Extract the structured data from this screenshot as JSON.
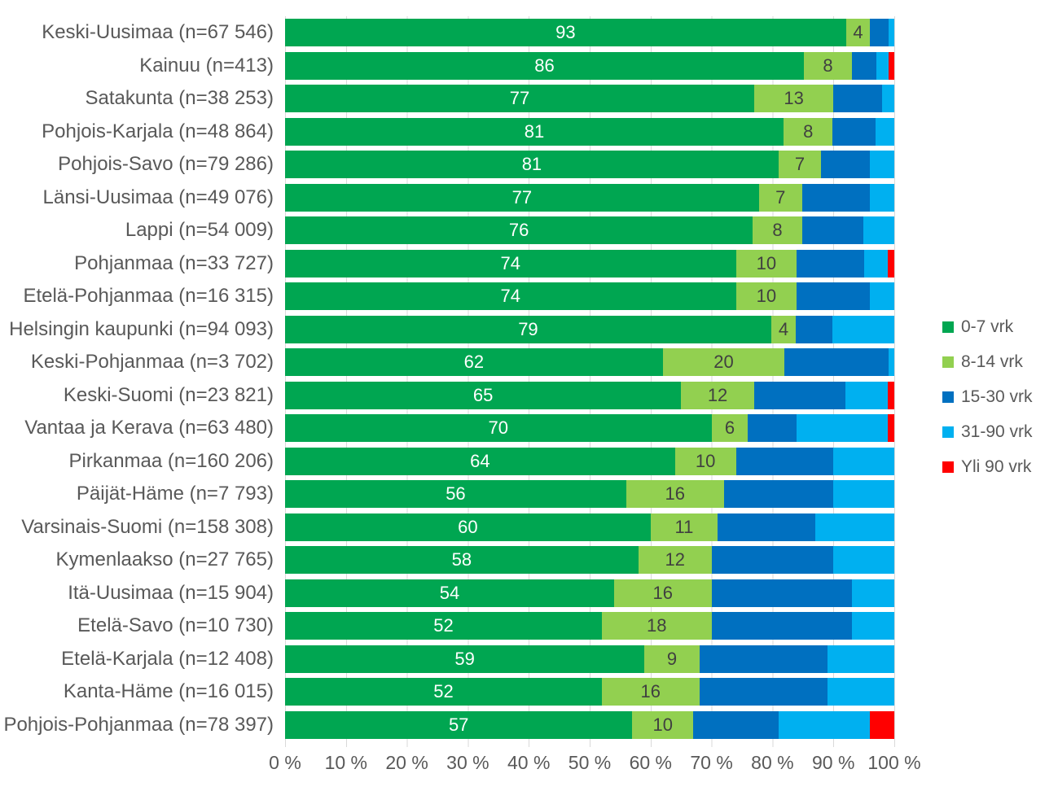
{
  "chart_data": {
    "type": "bar",
    "orientation": "horizontal",
    "stacked": true,
    "value_unit": "%",
    "title": "",
    "x_axis": {
      "min": 0,
      "max": 100,
      "tick_labels": [
        "0 %",
        "10 %",
        "20 %",
        "30 %",
        "40 %",
        "50 %",
        "60 %",
        "70 %",
        "80 %",
        "90 %",
        "100 %"
      ],
      "grid": true,
      "grid_color": "#D9D9D9"
    },
    "legend": {
      "position": "right",
      "items": [
        "0-7 vrk",
        "8-14 vrk",
        "15-30 vrk",
        "31-90 vrk",
        "Yli 90 vrk"
      ]
    },
    "series": [
      {
        "name": "0-7 vrk",
        "color": "#00A651"
      },
      {
        "name": "8-14 vrk",
        "color": "#92D050"
      },
      {
        "name": "15-30 vrk",
        "color": "#0070C0"
      },
      {
        "name": "31-90 vrk",
        "color": "#00B0F0"
      },
      {
        "name": "Yli 90 vrk",
        "color": "#FF0000"
      }
    ],
    "labels_shown_for_series_indexes": [
      0,
      1
    ],
    "rows": [
      {
        "category": "Keski-Uusimaa (n=67 546)",
        "values": [
          93,
          4,
          3,
          1,
          0
        ]
      },
      {
        "category": "Kainuu (n=413)",
        "values": [
          86,
          8,
          4,
          2,
          1
        ]
      },
      {
        "category": "Satakunta (n=38 253)",
        "values": [
          77,
          13,
          8,
          2,
          0
        ]
      },
      {
        "category": "Pohjois-Karjala (n=48 864)",
        "values": [
          81,
          8,
          7,
          3,
          0
        ]
      },
      {
        "category": "Pohjois-Savo (n=79 286)",
        "values": [
          81,
          7,
          8,
          4,
          0
        ]
      },
      {
        "category": "Länsi-Uusimaa (n=49 076)",
        "values": [
          77,
          7,
          11,
          4,
          0
        ]
      },
      {
        "category": "Lappi (n=54 009)",
        "values": [
          76,
          8,
          10,
          5,
          0
        ]
      },
      {
        "category": "Pohjanmaa (n=33 727)",
        "values": [
          74,
          10,
          11,
          4,
          1
        ]
      },
      {
        "category": "Etelä-Pohjanmaa (n=16 315)",
        "values": [
          74,
          10,
          12,
          4,
          0
        ]
      },
      {
        "category": "Helsingin kaupunki (n=94 093)",
        "values": [
          79,
          4,
          6,
          10,
          0
        ]
      },
      {
        "category": "Keski-Pohjanmaa (n=3 702)",
        "values": [
          62,
          20,
          17,
          1,
          0
        ]
      },
      {
        "category": "Keski-Suomi (n=23 821)",
        "values": [
          65,
          12,
          15,
          7,
          1
        ]
      },
      {
        "category": "Vantaa ja Kerava (n=63 480)",
        "values": [
          70,
          6,
          8,
          15,
          1
        ]
      },
      {
        "category": "Pirkanmaa (n=160 206)",
        "values": [
          64,
          10,
          16,
          10,
          0
        ]
      },
      {
        "category": "Päijät-Häme (n=7 793)",
        "values": [
          56,
          16,
          18,
          10,
          0
        ]
      },
      {
        "category": "Varsinais-Suomi (n=158 308)",
        "values": [
          60,
          11,
          16,
          13,
          0
        ]
      },
      {
        "category": "Kymenlaakso (n=27 765)",
        "values": [
          58,
          12,
          20,
          10,
          0
        ]
      },
      {
        "category": "Itä-Uusimaa (n=15 904)",
        "values": [
          54,
          16,
          23,
          7,
          0
        ]
      },
      {
        "category": "Etelä-Savo (n=10 730)",
        "values": [
          52,
          18,
          23,
          7,
          0
        ]
      },
      {
        "category": "Etelä-Karjala (n=12 408)",
        "values": [
          59,
          9,
          21,
          11,
          0
        ]
      },
      {
        "category": "Kanta-Häme (n=16 015)",
        "values": [
          52,
          16,
          21,
          11,
          0
        ]
      },
      {
        "category": "Pohjois-Pohjanmaa (n=78 397)",
        "values": [
          57,
          10,
          14,
          15,
          4
        ]
      }
    ],
    "segment_label_colors": {
      "on_series_0": "#FFFFFF",
      "on_series_1": "#404040"
    }
  },
  "styles": {
    "background": "#FFFFFF",
    "grid_color": "#D9D9D9",
    "axis_text_color": "#595959",
    "category_text_color": "#595959"
  }
}
